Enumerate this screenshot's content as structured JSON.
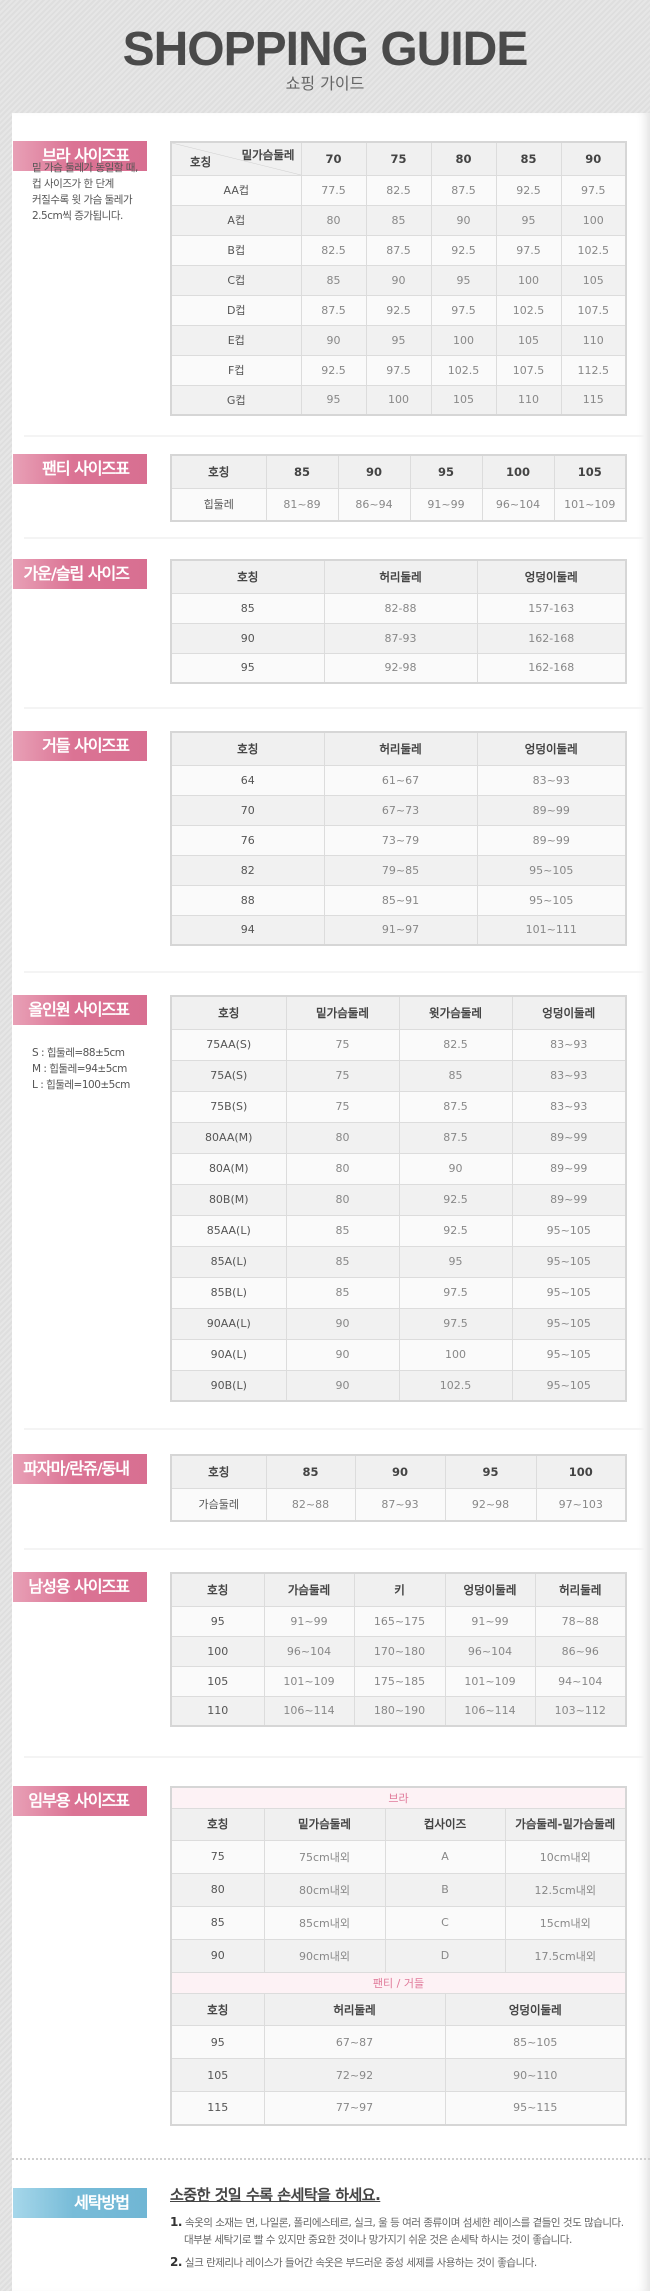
{
  "header": {
    "title": "SHOPPING GUIDE",
    "subtitle": "쇼핑 가이드"
  },
  "sections": {
    "bra": {
      "label": "브라 사이즈표",
      "note": [
        "밑 가슴 둘레가 동일할 때,",
        "컵 사이즈가 한 단계",
        "커질수록 윗 가슴 둘레가",
        "2.5cm씩 증가됩니다."
      ],
      "corner_top": "밑가슴둘레",
      "corner_bottom": "호칭",
      "headers": [
        "70",
        "75",
        "80",
        "85",
        "90"
      ],
      "rows": [
        [
          "AA컵",
          "77.5",
          "82.5",
          "87.5",
          "92.5",
          "97.5"
        ],
        [
          "A컵",
          "80",
          "85",
          "90",
          "95",
          "100"
        ],
        [
          "B컵",
          "82.5",
          "87.5",
          "92.5",
          "97.5",
          "102.5"
        ],
        [
          "C컵",
          "85",
          "90",
          "95",
          "100",
          "105"
        ],
        [
          "D컵",
          "87.5",
          "92.5",
          "97.5",
          "102.5",
          "107.5"
        ],
        [
          "E컵",
          "90",
          "95",
          "100",
          "105",
          "110"
        ],
        [
          "F컵",
          "92.5",
          "97.5",
          "102.5",
          "107.5",
          "112.5"
        ],
        [
          "G컵",
          "95",
          "100",
          "105",
          "110",
          "115"
        ]
      ]
    },
    "panty": {
      "label": "팬티 사이즈표",
      "headers": [
        "호칭",
        "85",
        "90",
        "95",
        "100",
        "105"
      ],
      "rows": [
        [
          "힙둘레",
          "81~89",
          "86~94",
          "91~99",
          "96~104",
          "101~109"
        ]
      ]
    },
    "gown": {
      "label": "가운/슬립 사이즈표",
      "headers": [
        "호칭",
        "허리둘레",
        "엉덩이둘레"
      ],
      "rows": [
        [
          "85",
          "82-88",
          "157-163"
        ],
        [
          "90",
          "87-93",
          "162-168"
        ],
        [
          "95",
          "92-98",
          "162-168"
        ]
      ]
    },
    "girdle": {
      "label": "거들 사이즈표",
      "headers": [
        "호칭",
        "허리둘레",
        "엉덩이둘레"
      ],
      "rows": [
        [
          "64",
          "61~67",
          "83~93"
        ],
        [
          "70",
          "67~73",
          "89~99"
        ],
        [
          "76",
          "73~79",
          "89~99"
        ],
        [
          "82",
          "79~85",
          "95~105"
        ],
        [
          "88",
          "85~91",
          "95~105"
        ],
        [
          "94",
          "91~97",
          "101~111"
        ]
      ]
    },
    "allinone": {
      "label": "올인원 사이즈표",
      "note": [
        "S : 힙둘레=88±5cm",
        "M : 힙둘레=94±5cm",
        "L : 힙둘레=100±5cm"
      ],
      "headers": [
        "호칭",
        "밑가슴둘레",
        "윗가슴둘레",
        "엉덩이둘레"
      ],
      "rows": [
        [
          "75AA(S)",
          "75",
          "82.5",
          "83~93"
        ],
        [
          "75A(S)",
          "75",
          "85",
          "83~93"
        ],
        [
          "75B(S)",
          "75",
          "87.5",
          "83~93"
        ],
        [
          "80AA(M)",
          "80",
          "87.5",
          "89~99"
        ],
        [
          "80A(M)",
          "80",
          "90",
          "89~99"
        ],
        [
          "80B(M)",
          "80",
          "92.5",
          "89~99"
        ],
        [
          "85AA(L)",
          "85",
          "92.5",
          "95~105"
        ],
        [
          "85A(L)",
          "85",
          "95",
          "95~105"
        ],
        [
          "85B(L)",
          "85",
          "97.5",
          "95~105"
        ],
        [
          "90AA(L)",
          "90",
          "97.5",
          "95~105"
        ],
        [
          "90A(L)",
          "90",
          "100",
          "95~105"
        ],
        [
          "90B(L)",
          "90",
          "102.5",
          "95~105"
        ]
      ]
    },
    "pajama": {
      "label": "파자마/란쥬/동내의",
      "headers": [
        "호칭",
        "85",
        "90",
        "95",
        "100"
      ],
      "rows": [
        [
          "가슴둘레",
          "82~88",
          "87~93",
          "92~98",
          "97~103"
        ]
      ]
    },
    "men": {
      "label": "남성용 사이즈표",
      "headers": [
        "호칭",
        "가슴둘레",
        "키",
        "엉덩이둘레",
        "허리둘레"
      ],
      "rows": [
        [
          "95",
          "91~99",
          "165~175",
          "91~99",
          "78~88"
        ],
        [
          "100",
          "96~104",
          "170~180",
          "96~104",
          "86~96"
        ],
        [
          "105",
          "101~109",
          "175~185",
          "101~109",
          "94~104"
        ],
        [
          "110",
          "106~114",
          "180~190",
          "106~114",
          "103~112"
        ]
      ]
    },
    "maternity": {
      "label": "임부용 사이즈표",
      "bra_sub": "브라",
      "bra_headers": [
        "호칭",
        "밑가슴둘레",
        "컵사이즈",
        "가슴둘레-밑가슴둘레"
      ],
      "bra_rows": [
        [
          "75",
          "75cm내외",
          "A",
          "10cm내외"
        ],
        [
          "80",
          "80cm내외",
          "B",
          "12.5cm내외"
        ],
        [
          "85",
          "85cm내외",
          "C",
          "15cm내외"
        ],
        [
          "90",
          "90cm내외",
          "D",
          "17.5cm내외"
        ]
      ],
      "panty_sub": "팬티 / 거들",
      "panty_headers": [
        "호칭",
        "허리둘레",
        "엉덩이둘레"
      ],
      "panty_rows": [
        [
          "95",
          "67~87",
          "85~105"
        ],
        [
          "105",
          "72~92",
          "90~110"
        ],
        [
          "115",
          "77~97",
          "95~115"
        ]
      ]
    },
    "wash": {
      "label": "세탁방법",
      "title": "소중한 것일 수록 손세탁을 하세요.",
      "items": [
        {
          "num": "1.",
          "lines": [
            "속옷의 소재는 면, 나일론, 폴리에스테르, 실크, 울 등 여러 종류이며 섬세한 레이스를 곁들인 것도 많습니다.",
            "대부분 세탁기로 빨 수 있지만 중요한 것이나 망가지기 쉬운 것은 손세탁 하시는 것이 좋습니다."
          ]
        },
        {
          "num": "2.",
          "lines": [
            "실크 란제리나 레이스가 들어간 속옷은 부드러운 중성 세제를 사용하는 것이 좋습니다."
          ]
        }
      ]
    }
  },
  "colors": {
    "label_pink": "#db7394",
    "label_blue": "#78bcd8",
    "sub_header_text": "#e07a9a"
  }
}
